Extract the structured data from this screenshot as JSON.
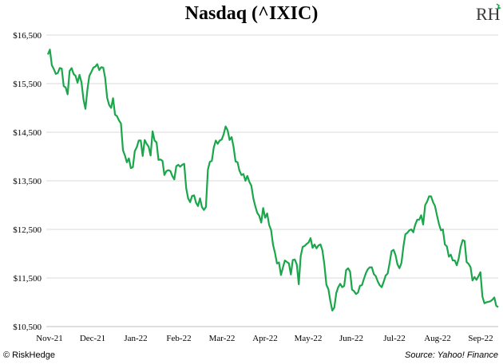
{
  "chart_data": {
    "type": "line",
    "title": "Nasdaq (^IXIC)",
    "xlabel": "",
    "ylabel": "",
    "ylim": [
      10500,
      16500
    ],
    "yticks": [
      10500,
      11500,
      12500,
      13500,
      14500,
      15500,
      16500
    ],
    "ytick_labels": [
      "$10,500",
      "$11,500",
      "$12,500",
      "$13,500",
      "$14,500",
      "$15,500",
      "$16,500"
    ],
    "xtick_labels": [
      "Nov-21",
      "Dec-21",
      "Jan-22",
      "Feb-22",
      "Mar-22",
      "Apr-22",
      "May-22",
      "Jun-22",
      "Jul-22",
      "Aug-22",
      "Sep-22"
    ],
    "grid": true,
    "line_color": "#1aa64a",
    "series": [
      {
        "values": [
          16100,
          16200,
          15880,
          15800,
          15700,
          15720,
          15820,
          15810,
          15450,
          15420,
          15280,
          15760,
          15820,
          15700,
          15660,
          15520,
          15680,
          15520,
          15180,
          14980,
          15380,
          15660,
          15740,
          15830,
          15850,
          15900,
          15780,
          15840,
          15830,
          15620,
          15210,
          15060,
          15000,
          15200,
          14860,
          14830,
          14740,
          14680,
          14130,
          14020,
          13880,
          13960,
          13760,
          13780,
          14110,
          14190,
          14330,
          14330,
          14010,
          14340,
          14260,
          14200,
          14020,
          14520,
          14330,
          14290,
          13930,
          13940,
          13910,
          13620,
          13700,
          13720,
          13700,
          13600,
          13530,
          13800,
          13830,
          13790,
          13830,
          13850,
          13350,
          13140,
          13060,
          13190,
          13200,
          13050,
          12980,
          13140,
          12960,
          12900,
          12960,
          13730,
          13890,
          13910,
          14190,
          14330,
          14260,
          14330,
          14350,
          14460,
          14620,
          14540,
          14340,
          14400,
          14200,
          13900,
          13880,
          13710,
          13620,
          13640,
          13500,
          13600,
          13480,
          13400,
          13140,
          12980,
          12840,
          12780,
          12640,
          12940,
          12740,
          12830,
          12590,
          12490,
          12180,
          12010,
          11800,
          11820,
          11560,
          11720,
          11860,
          11830,
          11800,
          11570,
          11870,
          11880,
          11780,
          11370,
          11950,
          12140,
          12160,
          12200,
          12230,
          12320,
          12120,
          12190,
          12110,
          12170,
          12190,
          12070,
          11770,
          11360,
          11270,
          11030,
          10830,
          10890,
          11190,
          11310,
          11380,
          11310,
          11340,
          11660,
          11700,
          11630,
          11260,
          11230,
          11170,
          11200,
          11340,
          11350,
          11480,
          11600,
          11680,
          11720,
          11720,
          11580,
          11540,
          11430,
          11350,
          11310,
          11420,
          11550,
          11590,
          11800,
          12050,
          12080,
          11970,
          11780,
          11700,
          11810,
          12150,
          12400,
          12430,
          12480,
          12500,
          12440,
          12600,
          12700,
          12700,
          12790,
          12600,
          13000,
          13070,
          13180,
          13180,
          13060,
          12980,
          12790,
          12610,
          12480,
          12500,
          12190,
          12150,
          11940,
          11980,
          11860,
          11860,
          11760,
          11900,
          12140,
          12280,
          12260,
          11830,
          11790,
          11720,
          11450,
          11520,
          11460,
          11540,
          11620,
          11120,
          10980,
          11000,
          11010,
          11020,
          11050,
          11100,
          10930,
          10900
        ]
      }
    ]
  },
  "footer": {
    "left": "© RiskHedge",
    "right": "Source: Yahoo! Finance"
  },
  "logo_text": "RH",
  "logo_icon": "riskhedge-logo-icon"
}
